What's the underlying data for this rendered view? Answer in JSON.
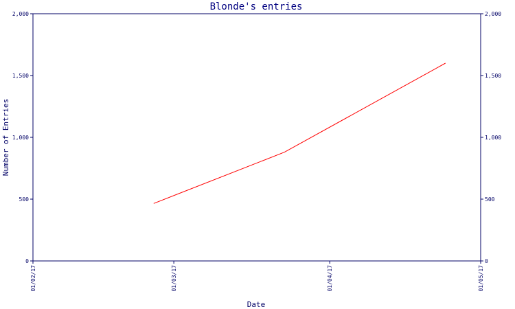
{
  "chart_data": {
    "type": "line",
    "title": "Blonde's entries",
    "xlabel": "Date",
    "ylabel": "Number of Entries",
    "x_tick_labels": [
      "01/02/17",
      "01/03/17",
      "01/04/17",
      "01/05/17"
    ],
    "x_ticks": [
      "2017-02-01",
      "2017-03-01",
      "2017-04-01",
      "2017-05-01"
    ],
    "xlim": [
      "2017-02-01",
      "2017-05-01"
    ],
    "y_ticks": [
      0,
      500,
      1000,
      1500,
      2000
    ],
    "y_tick_labels": [
      "0",
      "500",
      "1,000",
      "1,500",
      "2,000"
    ],
    "ylim": [
      0,
      2000
    ],
    "right_axis": true,
    "grid": false,
    "series": [
      {
        "color": "#ff0000",
        "x": [
          "2017-02-25",
          "2017-03-23",
          "2017-04-24"
        ],
        "y": [
          465,
          880,
          1600
        ]
      }
    ]
  },
  "colors": {
    "axis": "#000066",
    "series": "#ff0000"
  }
}
